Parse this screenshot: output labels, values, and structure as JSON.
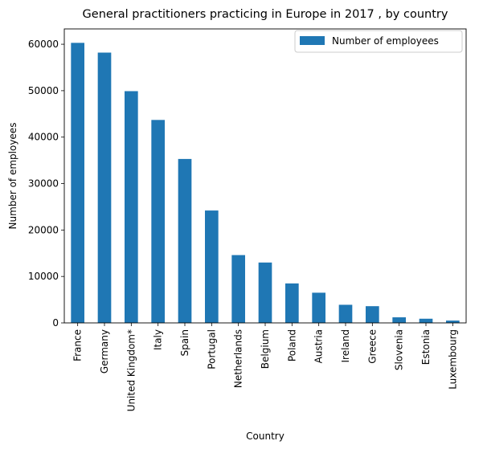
{
  "chart_data": {
    "type": "bar",
    "title": "General practitioners practicing in Europe in 2017 , by country",
    "xlabel": "Country",
    "ylabel": "Number of employees",
    "categories": [
      "France",
      "Germany",
      "United Kingdom*",
      "Italy",
      "Spain",
      "Portugal",
      "Netherlands",
      "Belgium",
      "Poland",
      "Austria",
      "Ireland",
      "Greece",
      "Slovenia",
      "Estonia",
      "Luxembourg"
    ],
    "series": [
      {
        "name": "Number of employees",
        "color": "#1f77b4",
        "values": [
          60300,
          58200,
          49900,
          43700,
          35300,
          24200,
          14600,
          13000,
          8500,
          6500,
          3900,
          3600,
          1200,
          900,
          500
        ]
      }
    ],
    "ylim": [
      0,
      63300
    ],
    "yticks": [
      0,
      10000,
      20000,
      30000,
      40000,
      50000,
      60000
    ],
    "legend_position": "top-right",
    "grid": false
  }
}
